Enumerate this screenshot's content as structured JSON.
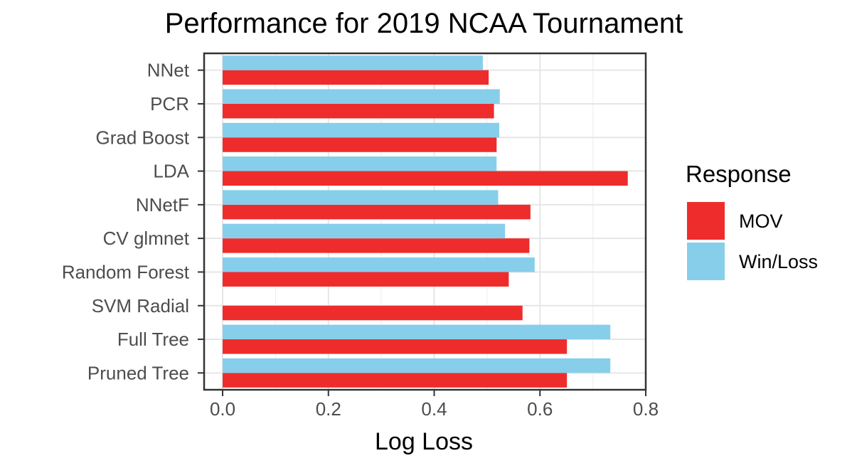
{
  "chart_data": {
    "type": "bar",
    "orientation": "horizontal",
    "title": "Performance for 2019 NCAA Tournament",
    "xlabel": "Log Loss",
    "ylabel": "",
    "xlim": [
      -0.035,
      0.8
    ],
    "xticks": [
      "0.0",
      "0.2",
      "0.4",
      "0.6",
      "0.8"
    ],
    "grid": true,
    "legend": {
      "title": "Response",
      "placement": "right"
    },
    "categories": [
      "NNet",
      "PCR",
      "Grad Boost",
      "LDA",
      "NNetF",
      "CV glmnet",
      "Random Forest",
      "SVM Radial",
      "Full Tree",
      "Pruned Tree"
    ],
    "series": [
      {
        "name": "MOV",
        "color": "#ee2c2c",
        "values": [
          0.503,
          0.513,
          0.518,
          0.766,
          0.582,
          0.58,
          0.541,
          0.567,
          0.651,
          0.651
        ]
      },
      {
        "name": "Win/Loss",
        "color": "#87ceeb",
        "values": [
          0.492,
          0.524,
          0.523,
          0.518,
          0.521,
          0.534,
          0.59,
          null,
          0.733,
          0.733
        ]
      }
    ]
  }
}
